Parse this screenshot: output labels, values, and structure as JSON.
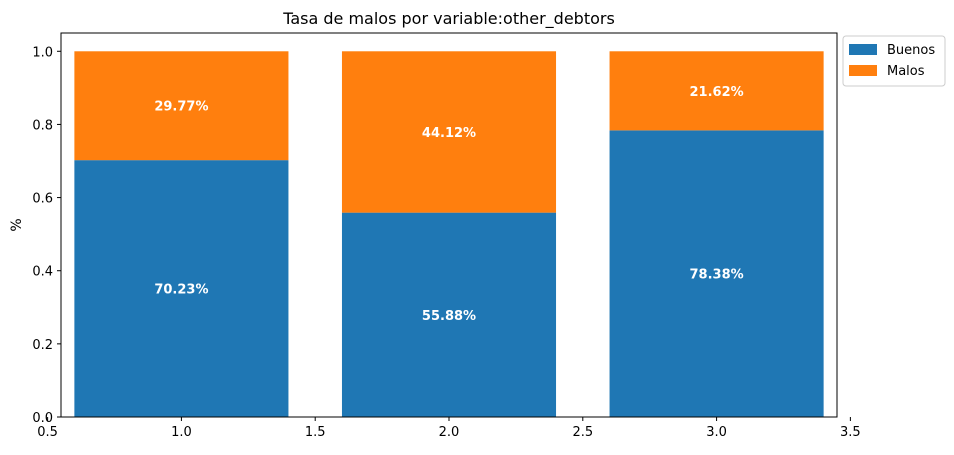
{
  "chart_data": {
    "type": "bar",
    "stacked": true,
    "title": "Tasa de malos por variable:other_debtors",
    "xlabel": "",
    "ylabel": "%",
    "x": [
      1.0,
      2.0,
      3.0
    ],
    "bar_width": 0.8,
    "xlim": [
      0.55,
      3.45
    ],
    "ylim": [
      0,
      1.05
    ],
    "xticks": [
      0.5,
      1.0,
      1.5,
      2.0,
      2.5,
      3.0,
      3.5
    ],
    "xtick_labels": [
      "0.5",
      "1.0",
      "1.5",
      "2.0",
      "2.5",
      "3.0",
      "3.5"
    ],
    "yticks": [
      0.0,
      0.2,
      0.4,
      0.6,
      0.8,
      1.0
    ],
    "ytick_labels": [
      "0.0",
      "0.2",
      "0.4",
      "0.6",
      "0.8",
      "1.0"
    ],
    "grid": false,
    "legend_position": "upper-right-outside",
    "series": [
      {
        "name": "Buenos",
        "color": "#1f77b4",
        "values": [
          0.7023,
          0.5588,
          0.7838
        ],
        "labels": [
          "70.23%",
          "55.88%",
          "78.38%"
        ]
      },
      {
        "name": "Malos",
        "color": "#ff7f0e",
        "values": [
          0.2977,
          0.4412,
          0.2162
        ],
        "labels": [
          "29.77%",
          "44.12%",
          "21.62%"
        ]
      }
    ]
  }
}
